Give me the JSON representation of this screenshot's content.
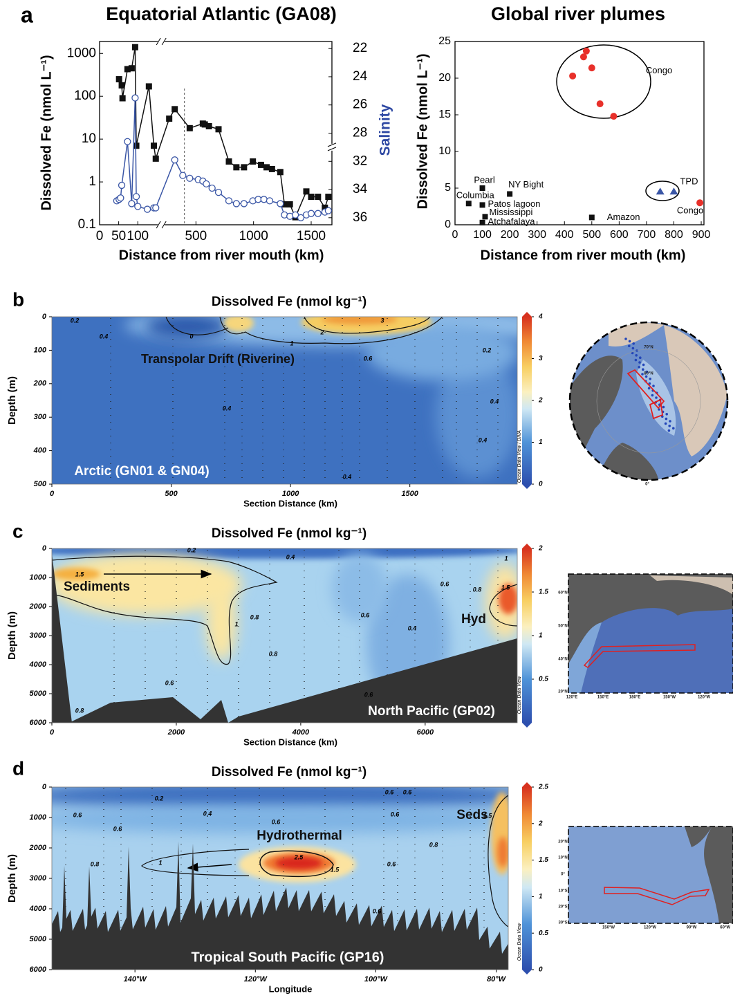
{
  "chart_data": [
    {
      "type": "line",
      "panel": "a",
      "title": "Equatorial Atlantic (GA08)",
      "x_label": "Distance from river mouth (km)",
      "y_label": "Dissolved Fe (nmol L⁻¹)",
      "y2_label": "Salinity",
      "xlim": [
        0,
        1680
      ],
      "x_break": [
        155,
        220
      ],
      "xticks": [
        0,
        50,
        100,
        500,
        1000,
        1500
      ],
      "ylim": [
        0.1,
        1900
      ],
      "y_scale": "log",
      "yticks": [
        0.1,
        1,
        10,
        100,
        1000
      ],
      "y2lim": [
        21.5,
        36.5
      ],
      "y2_break": [
        29,
        31
      ],
      "y2_inverted": true,
      "y2ticks": [
        22,
        24,
        26,
        28,
        32,
        34,
        36
      ],
      "vline": 400,
      "series": [
        {
          "color": "#111111",
          "marker": "square",
          "x": [
            51,
            58,
            60,
            73,
            84,
            93,
            96,
            129,
            142,
            147,
            268,
            316,
            446,
            560,
            577,
            613,
            696,
            786,
            851,
            917,
            994,
            1065,
            1113,
            1160,
            1232,
            1268,
            1315,
            1363,
            1458,
            1500,
            1559,
            1619,
            1649
          ],
          "values": [
            250,
            180,
            90,
            430,
            450,
            1400,
            7,
            170,
            7,
            3.5,
            30,
            50,
            18,
            23,
            22,
            20,
            17,
            3,
            2.2,
            2.2,
            3,
            2.5,
            2.2,
            2,
            1.7,
            0.3,
            0.3,
            0.15,
            0.6,
            0.45,
            0.45,
            0.25,
            0.45
          ]
        },
        {
          "color": "#3a56a6",
          "marker": "open-circle",
          "axis": "y2",
          "x": [
            45,
            51,
            55,
            58,
            73,
            84,
            93,
            96,
            100,
            125,
            142,
            147,
            316,
            386,
            446,
            520,
            560,
            590,
            640,
            696,
            786,
            851,
            917,
            994,
            1040,
            1090,
            1140,
            1232,
            1268,
            1315,
            1363,
            1410,
            1458,
            1500,
            1559,
            1619,
            1649
          ],
          "values": [
            34.8,
            34.7,
            34.6,
            33.7,
            28.6,
            35.0,
            25.5,
            34.5,
            35.2,
            35.4,
            35.3,
            35.3,
            31.9,
            33.0,
            33.2,
            33.3,
            33.4,
            33.6,
            33.9,
            34.2,
            34.8,
            35.0,
            35.0,
            34.8,
            34.7,
            34.7,
            34.8,
            35.0,
            35.8,
            35.9,
            35.8,
            36.0,
            35.8,
            35.7,
            35.7,
            35.6,
            35.5
          ]
        }
      ]
    },
    {
      "type": "scatter",
      "title": "Global river plumes",
      "x_label": "Distance from river mouth (km)",
      "y_label": "Dissolved Fe (nmol L⁻¹)",
      "xlim": [
        0,
        910
      ],
      "xticks": [
        0,
        100,
        200,
        300,
        400,
        500,
        600,
        700,
        800,
        900
      ],
      "ylim": [
        0,
        25
      ],
      "yticks": [
        0,
        5,
        10,
        15,
        20,
        25
      ],
      "series": [
        {
          "color": "#111111",
          "marker": "square",
          "x": [
            100,
            200,
            50,
            100,
            110,
            100,
            500
          ],
          "values": [
            5,
            4.2,
            2.9,
            2.7,
            1.1,
            0.3,
            1.0
          ],
          "point_labels": [
            "Pearl",
            "NY Bight",
            "Columbia",
            "Patos lagoon",
            "Mississippi",
            "Atchafalaya",
            "Amazon"
          ]
        },
        {
          "color": "#e8302a",
          "marker": "circle",
          "x": [
            430,
            470,
            480,
            500,
            530,
            580,
            895
          ],
          "values": [
            20.3,
            22.9,
            23.7,
            21.4,
            16.5,
            14.8,
            3.0
          ],
          "point_labels": [
            null,
            null,
            "Congo",
            null,
            null,
            null,
            "Congo"
          ]
        },
        {
          "color": "#3a56a6",
          "marker": "triangle",
          "x": [
            750,
            800
          ],
          "values": [
            4.5,
            4.5
          ],
          "point_labels": [
            null,
            "TPD"
          ]
        }
      ]
    },
    {
      "type": "contour",
      "panel": "b",
      "title": "Dissolved Fe (nmol kg⁻¹)",
      "x_label": "Section Distance (km)",
      "y_label": "Depth (m)",
      "xlim": [
        0,
        1950
      ],
      "xticks": [
        0,
        500,
        1000,
        1500
      ],
      "ylim": [
        0,
        500
      ],
      "y_inverted": true,
      "yticks": [
        0,
        100,
        200,
        300,
        400,
        500
      ],
      "zlim": [
        0,
        4
      ],
      "zticks": [
        0,
        1,
        2,
        3,
        4
      ],
      "colorbar_label": "Ocean Data View / DIVA",
      "annotations": [
        "Transpolar Drift (Riverine)",
        "Arctic (GN01 & GN04)"
      ],
      "contour_labels": [
        0.2,
        0.4,
        0,
        1,
        2,
        3,
        0.6,
        0.2,
        0.4,
        0.4,
        0.4,
        0.4
      ],
      "map_labels": [
        "80°N",
        "70°N",
        "0°"
      ]
    },
    {
      "type": "contour",
      "panel": "c",
      "title": "Dissolved Fe (nmol kg⁻¹)",
      "x_label": "Section Distance (km)",
      "y_label": "Depth (m)",
      "xlim": [
        0,
        7480
      ],
      "xticks": [
        0,
        2000,
        4000,
        6000
      ],
      "ylim": [
        0,
        6000
      ],
      "y_inverted": true,
      "yticks": [
        0,
        1000,
        2000,
        3000,
        4000,
        5000,
        6000
      ],
      "zlim": [
        0,
        2
      ],
      "zticks": [
        0.5,
        1,
        1.5,
        2
      ],
      "colorbar_label": "Ocean Data View",
      "annotations": [
        "Sediments",
        "Hyd",
        "North Pacific (GP02)"
      ],
      "contour_labels": [
        0.2,
        0.4,
        1.5,
        1,
        0.8,
        0.6,
        0.8,
        0.6,
        0.4,
        0.8,
        0.6,
        0.6,
        0.8,
        1.5,
        1
      ],
      "map_labels": [
        "60°N",
        "50°N",
        "40°N",
        "20°N",
        "120°E",
        "150°E",
        "180°E",
        "150°W",
        "120°W"
      ]
    },
    {
      "type": "contour",
      "panel": "d",
      "title": "Dissolved Fe (nmol kg⁻¹)",
      "x_label": "Longitude",
      "y_label": "Depth (m)",
      "xlim": [
        -153.8,
        -78
      ],
      "xticks": [
        {
          "value": -140,
          "label": "140°W"
        },
        {
          "value": -120,
          "label": "120°W"
        },
        {
          "value": -100,
          "label": "100°W"
        },
        {
          "value": -80,
          "label": "80°W"
        }
      ],
      "ylim": [
        0,
        6000
      ],
      "y_inverted": true,
      "yticks": [
        0,
        1000,
        2000,
        3000,
        4000,
        5000,
        6000
      ],
      "zlim": [
        0,
        2.5
      ],
      "zticks": [
        0,
        0.5,
        1,
        1.5,
        2,
        2.5
      ],
      "colorbar_label": "Ocean Data View",
      "annotations": [
        "Hydrothermal",
        "Seds",
        "Tropical South Pacific (GP16)"
      ],
      "contour_labels": [
        0.2,
        0.6,
        0.4,
        0.6,
        0.6,
        0.6,
        0.6,
        0.8,
        1,
        2.5,
        1.5,
        0.6,
        0.8,
        0.6,
        0.6,
        1.5
      ],
      "map_labels": [
        "20°N",
        "10°N",
        "0°",
        "10°S",
        "20°S",
        "30°S",
        "150°W",
        "120°W",
        "90°W",
        "60°W"
      ]
    }
  ]
}
